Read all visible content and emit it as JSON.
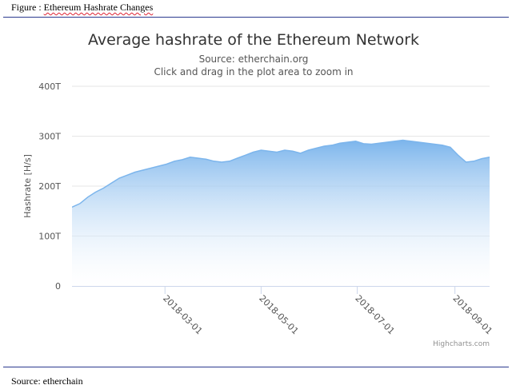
{
  "figure": {
    "caption_prefix": "Figure : ",
    "caption_rest": "Ethereum Hashrate Changes",
    "source_note": "Source: etherchain"
  },
  "chart_data": {
    "type": "area",
    "title": "Average hashrate of the Ethereum Network",
    "subtitle": "Source: etherchain.org",
    "subtitle2": "Click and drag in the plot area to zoom in",
    "ylabel": "Hashrate [H/s]",
    "xlabel": "",
    "y_ticks": [
      "0",
      "100T",
      "200T",
      "300T",
      "400T"
    ],
    "ylim": [
      0,
      400
    ],
    "x_ticks": [
      "2018-03-01",
      "2018-05-01",
      "2018-07-01",
      "2018-09-01"
    ],
    "xlim": [
      "2018-01-01",
      "2018-09-23"
    ],
    "grid": true,
    "legend": false,
    "credits": "Highcharts.com",
    "colors": {
      "fill_top": "#7cb5ec",
      "fill_bottom": "#ffffff",
      "line": "#7cb5ec",
      "grid": "#e6e6e6"
    },
    "series": [
      {
        "x": [
          "2018-01-01",
          "2018-01-06",
          "2018-01-11",
          "2018-01-16",
          "2018-01-21",
          "2018-01-26",
          "2018-01-31",
          "2018-02-05",
          "2018-02-10",
          "2018-02-15",
          "2018-02-20",
          "2018-02-25",
          "2018-03-02",
          "2018-03-07",
          "2018-03-12",
          "2018-03-17",
          "2018-03-22",
          "2018-03-27",
          "2018-04-01",
          "2018-04-06",
          "2018-04-11",
          "2018-04-16",
          "2018-04-21",
          "2018-04-26",
          "2018-05-01",
          "2018-05-06",
          "2018-05-11",
          "2018-05-16",
          "2018-05-21",
          "2018-05-26",
          "2018-05-31",
          "2018-06-05",
          "2018-06-10",
          "2018-06-15",
          "2018-06-20",
          "2018-06-25",
          "2018-06-30",
          "2018-07-05",
          "2018-07-10",
          "2018-07-15",
          "2018-07-20",
          "2018-07-25",
          "2018-07-30",
          "2018-08-04",
          "2018-08-09",
          "2018-08-14",
          "2018-08-19",
          "2018-08-24",
          "2018-08-29",
          "2018-09-03",
          "2018-09-08",
          "2018-09-13",
          "2018-09-18",
          "2018-09-23"
        ],
        "values": [
          158,
          165,
          178,
          188,
          196,
          206,
          216,
          222,
          228,
          232,
          236,
          240,
          244,
          250,
          253,
          258,
          256,
          254,
          250,
          248,
          250,
          256,
          262,
          268,
          272,
          270,
          268,
          272,
          270,
          266,
          272,
          276,
          280,
          282,
          286,
          288,
          290,
          285,
          284,
          286,
          288,
          290,
          292,
          290,
          288,
          286,
          284,
          282,
          278,
          262,
          248,
          250,
          255,
          258
        ]
      }
    ]
  }
}
